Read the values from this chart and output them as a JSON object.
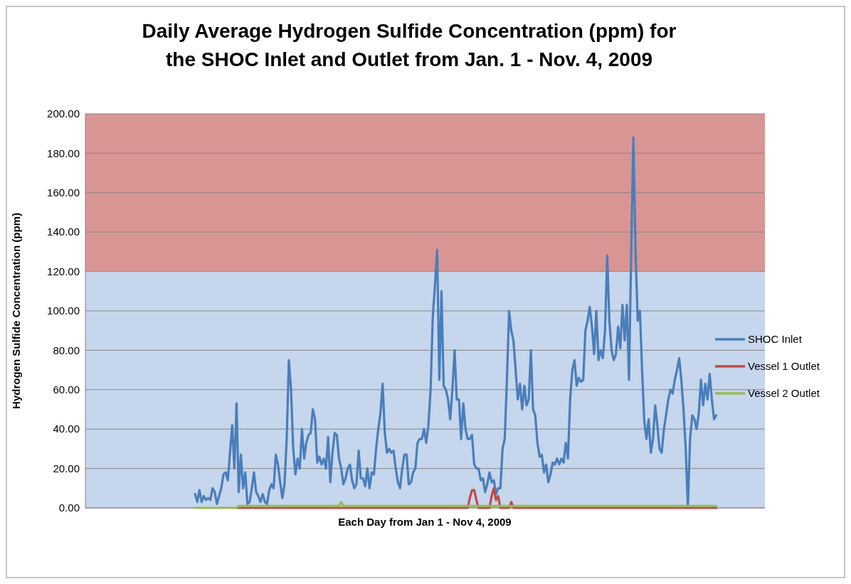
{
  "chart_data": {
    "type": "line",
    "title": "Daily Average Hydrogen Sulfide Concentration (ppm) for\nthe SHOC Inlet and Outlet from Jan. 1 - Nov. 4, 2009",
    "xlabel": "Each Day from Jan 1 - Nov 4, 2009",
    "ylabel": "Hydrogen Sulfide Concentration (ppm)",
    "categories": [
      null,
      null,
      null,
      null,
      null,
      null,
      null,
      null,
      null,
      null,
      null,
      null,
      null,
      null,
      null,
      null,
      null,
      null,
      null,
      null,
      null,
      null,
      null,
      null,
      null,
      null,
      null,
      null,
      null,
      null,
      null,
      null,
      null,
      null,
      null,
      null,
      null,
      null,
      null,
      null,
      null,
      null,
      null,
      null,
      null,
      null,
      null,
      null,
      null,
      null,
      null,
      null,
      null,
      null,
      null,
      null,
      null,
      null,
      null,
      null,
      null,
      null,
      null,
      null,
      null,
      null,
      null,
      null,
      null,
      null,
      null,
      null,
      null,
      null,
      null,
      null,
      null,
      null,
      null,
      null,
      null,
      null,
      null,
      null,
      null,
      null,
      null,
      null,
      null,
      null,
      null,
      null,
      null,
      null,
      null,
      null,
      null,
      null,
      null,
      null,
      null,
      null,
      null,
      null,
      null,
      null,
      null,
      null,
      null,
      null,
      null,
      null,
      null,
      null,
      null,
      null,
      null,
      null,
      null,
      null,
      null,
      null,
      null,
      null,
      null,
      null,
      null,
      null,
      null,
      null,
      null,
      null,
      null,
      null,
      null,
      null,
      null,
      null,
      null,
      null,
      null,
      null,
      null,
      null,
      null,
      null,
      null,
      null,
      null,
      null,
      null,
      null,
      null,
      null,
      null,
      null,
      null,
      null,
      null,
      null,
      null,
      null,
      null,
      null,
      null,
      null,
      null,
      null,
      null,
      null,
      null,
      null,
      null,
      null,
      null,
      null,
      null,
      null,
      null,
      null,
      null,
      null,
      null,
      null,
      null,
      null,
      null,
      null,
      null,
      null,
      null,
      null,
      null,
      null,
      null,
      null,
      null,
      null,
      null,
      null,
      null,
      null,
      null,
      null,
      null,
      null,
      null,
      null,
      null,
      null,
      null,
      null,
      null,
      null,
      null,
      null,
      null,
      null,
      null,
      null,
      null,
      null,
      null,
      null,
      null,
      null,
      null,
      null,
      null,
      null,
      null,
      null,
      null,
      null,
      null,
      null,
      null,
      null,
      null,
      null,
      null,
      null,
      null,
      null,
      null,
      null,
      null,
      null,
      null,
      null,
      null,
      null,
      null,
      null,
      null,
      null,
      null,
      null,
      null,
      null,
      null,
      null,
      null,
      null,
      null,
      null,
      null,
      null,
      null,
      null,
      null,
      null,
      null,
      null,
      null,
      null,
      null,
      null,
      null,
      null,
      null,
      null,
      null,
      null,
      null,
      null,
      null,
      null,
      null,
      null,
      null,
      null,
      null,
      null,
      null,
      null,
      null,
      null,
      null,
      null,
      null,
      null,
      null,
      null,
      null,
      null,
      null,
      null,
      null,
      null,
      null,
      null
    ],
    "series": [
      {
        "name": "SHOC Inlet",
        "color": "#4a7ebb",
        "values": [
          null,
          null,
          null,
          null,
          null,
          null,
          null,
          null,
          null,
          null,
          null,
          null,
          null,
          null,
          null,
          null,
          null,
          null,
          null,
          null,
          null,
          null,
          null,
          null,
          null,
          null,
          null,
          null,
          null,
          null,
          null,
          null,
          null,
          null,
          null,
          null,
          null,
          null,
          null,
          null,
          null,
          null,
          null,
          null,
          null,
          null,
          null,
          null,
          null,
          null,
          7,
          3,
          9,
          3,
          6,
          4,
          5,
          4,
          10,
          8,
          2,
          6,
          10,
          17,
          18,
          14,
          28,
          42,
          20,
          53,
          8,
          27,
          10,
          18,
          2,
          3,
          10,
          18,
          8,
          6,
          3,
          7,
          3,
          2,
          9,
          12,
          10,
          27,
          22,
          13,
          5,
          12,
          35,
          75,
          60,
          30,
          17,
          25,
          20,
          40,
          25,
          33,
          37,
          38,
          50,
          45,
          23,
          26,
          22,
          25,
          20,
          36,
          13,
          28,
          38,
          37,
          25,
          20,
          12,
          15,
          20,
          22,
          14,
          10,
          12,
          29,
          15,
          15,
          11,
          20,
          10,
          18,
          17,
          30,
          40,
          48,
          63,
          38,
          28,
          30,
          28,
          29,
          20,
          13,
          10,
          20,
          27,
          27,
          12,
          13,
          18,
          20,
          33,
          35,
          35,
          40,
          33,
          42,
          60,
          97,
          113,
          131,
          65,
          110,
          62,
          60,
          55,
          45,
          60,
          80,
          55,
          55,
          35,
          53,
          40,
          35,
          35,
          37,
          22,
          20,
          20,
          14,
          15,
          8,
          12,
          18,
          13,
          14,
          7,
          10,
          10,
          30,
          35,
          65,
          100,
          90,
          85,
          70,
          55,
          63,
          50,
          62,
          52,
          55,
          80,
          50,
          47,
          33,
          26,
          27,
          18,
          22,
          13,
          17,
          23,
          22,
          25,
          22,
          25,
          23,
          33,
          25,
          55,
          70,
          75,
          62,
          66,
          64,
          65,
          90,
          95,
          102,
          92,
          78,
          100,
          75,
          80,
          76,
          90,
          128,
          95,
          80,
          75,
          78,
          92,
          81,
          103,
          85,
          103,
          65,
          130,
          188,
          130,
          95,
          100,
          70,
          44,
          35,
          45,
          28,
          35,
          52,
          42,
          30,
          28,
          40,
          47,
          55,
          60,
          58,
          65,
          70,
          76,
          65,
          50,
          30,
          0,
          35,
          47,
          45,
          40,
          48,
          65,
          52,
          63,
          55,
          68,
          55,
          45,
          47,
          null,
          null,
          null,
          null,
          null,
          null,
          null,
          null,
          null,
          null,
          null,
          null,
          null,
          null,
          null,
          null,
          null,
          null,
          null,
          null,
          null,
          null
        ]
      },
      {
        "name": "Vessel 1 Outlet",
        "color": "#be4b48",
        "values": [
          null,
          null,
          null,
          null,
          null,
          null,
          null,
          null,
          null,
          null,
          null,
          null,
          null,
          null,
          null,
          null,
          null,
          null,
          null,
          null,
          null,
          null,
          null,
          null,
          null,
          null,
          null,
          null,
          null,
          null,
          null,
          null,
          null,
          null,
          null,
          null,
          null,
          null,
          null,
          null,
          null,
          null,
          null,
          null,
          null,
          null,
          null,
          null,
          null,
          null,
          null,
          null,
          null,
          null,
          null,
          null,
          null,
          null,
          null,
          null,
          null,
          null,
          null,
          null,
          null,
          null,
          null,
          null,
          null,
          0,
          0,
          0,
          0,
          0,
          0,
          0,
          0,
          0,
          0,
          0,
          0,
          0,
          0,
          0,
          0,
          0,
          0,
          0,
          0,
          0,
          0,
          0,
          0,
          0,
          0,
          0,
          0,
          0,
          0,
          0,
          0,
          0,
          0,
          0,
          0,
          0,
          0,
          0,
          0,
          0,
          0,
          0,
          0,
          0,
          0,
          0,
          0,
          0,
          0,
          0,
          0,
          0,
          0,
          0,
          0,
          0,
          0,
          0,
          0,
          0,
          0,
          0,
          0,
          0,
          0,
          0,
          0,
          0,
          0,
          0,
          0,
          0,
          0,
          0,
          0,
          0,
          0,
          0,
          0,
          0,
          0,
          0,
          0,
          0,
          0,
          0,
          0,
          0,
          0,
          0,
          0,
          0,
          0,
          0,
          0,
          0,
          0,
          0,
          0,
          0,
          0,
          0,
          0,
          0,
          0,
          0,
          5,
          9,
          9,
          4,
          0,
          0,
          0,
          0,
          0,
          0,
          6,
          10,
          4,
          6,
          0,
          0,
          0,
          0,
          0,
          3,
          0,
          0,
          0,
          0,
          0,
          0,
          0,
          0,
          0,
          0,
          0,
          0,
          0,
          0,
          0,
          0,
          0,
          0,
          0,
          0,
          0,
          0,
          0,
          0,
          0,
          0,
          0,
          0,
          0,
          0,
          0,
          0,
          0,
          0,
          0,
          0,
          0,
          0,
          0,
          0,
          0,
          0,
          0,
          0,
          0,
          0,
          0,
          0,
          0,
          0,
          0,
          0,
          0,
          0,
          0,
          0,
          0,
          0,
          0,
          0,
          0,
          0,
          0,
          0,
          0,
          0,
          0,
          0,
          0,
          0,
          0,
          0,
          0,
          0,
          0,
          0,
          0,
          0,
          0,
          0,
          0,
          0,
          0,
          0,
          0,
          0,
          0,
          0,
          0,
          0,
          0,
          0,
          0,
          0,
          null,
          null,
          null,
          null,
          null,
          null,
          null,
          null,
          null,
          null,
          null,
          null,
          null,
          null,
          null,
          null,
          null,
          null,
          null,
          null,
          null,
          null
        ]
      },
      {
        "name": "Vessel 2 Outlet",
        "color": "#98b954",
        "values": [
          null,
          null,
          null,
          null,
          null,
          null,
          null,
          null,
          null,
          null,
          null,
          null,
          null,
          null,
          null,
          null,
          null,
          null,
          null,
          null,
          null,
          null,
          null,
          null,
          null,
          null,
          null,
          null,
          null,
          null,
          null,
          null,
          null,
          null,
          null,
          null,
          null,
          null,
          null,
          null,
          null,
          null,
          null,
          null,
          null,
          null,
          null,
          null,
          null,
          null,
          0,
          0,
          0,
          0,
          0,
          0,
          0,
          0,
          0,
          0,
          0,
          0,
          0,
          0,
          0,
          0,
          0,
          0,
          0,
          0,
          1,
          1,
          1,
          1,
          1,
          1,
          1,
          1,
          1,
          1,
          1,
          1,
          1,
          1,
          1,
          1,
          1,
          1,
          1,
          1,
          1,
          1,
          1,
          1,
          1,
          1,
          1,
          1,
          1,
          1,
          1,
          1,
          1,
          1,
          1,
          1,
          1,
          1,
          1,
          1,
          1,
          1,
          1,
          1,
          1,
          1,
          1,
          3,
          1,
          1,
          1,
          1,
          1,
          1,
          1,
          1,
          1,
          1,
          1,
          1,
          1,
          1,
          1,
          1,
          1,
          1,
          1,
          1,
          1,
          1,
          1,
          1,
          1,
          1,
          1,
          1,
          1,
          1,
          1,
          1,
          1,
          1,
          1,
          1,
          1,
          1,
          1,
          1,
          1,
          1,
          1,
          1,
          1,
          1,
          1,
          1,
          1,
          1,
          1,
          1,
          1,
          1,
          1,
          1,
          1,
          1,
          1,
          1,
          1,
          1,
          1,
          1,
          1,
          1,
          1,
          1,
          1,
          1,
          1,
          1,
          1,
          1,
          1,
          1,
          1,
          1,
          1,
          1,
          1,
          1,
          1,
          1,
          1,
          1,
          1,
          1,
          1,
          1,
          1,
          1,
          1,
          1,
          1,
          1,
          1,
          1,
          1,
          1,
          1,
          1,
          1,
          1,
          1,
          1,
          1,
          1,
          1,
          1,
          1,
          1,
          1,
          1,
          1,
          1,
          1,
          1,
          1,
          1,
          1,
          1,
          1,
          1,
          1,
          1,
          1,
          1,
          1,
          1,
          1,
          1,
          1,
          1,
          1,
          1,
          1,
          1,
          1,
          1,
          1,
          1,
          1,
          1,
          1,
          1,
          1,
          1,
          1,
          1,
          1,
          1,
          1,
          1,
          1,
          1,
          1,
          1,
          1,
          1,
          1,
          1,
          1,
          1,
          1,
          1,
          1,
          1,
          1,
          1,
          1,
          1,
          null,
          null,
          null,
          null,
          null,
          null,
          null,
          null,
          null,
          null,
          null,
          null,
          null,
          null,
          null,
          null,
          null,
          null,
          null,
          null,
          null,
          null
        ]
      }
    ],
    "ylim": [
      0,
      200
    ],
    "yticks": [
      {
        "value": 0,
        "label": "0.00"
      },
      {
        "value": 20,
        "label": "20.00"
      },
      {
        "value": 40,
        "label": "40.00"
      },
      {
        "value": 60,
        "label": "60.00"
      },
      {
        "value": 80,
        "label": "80.00"
      },
      {
        "value": 100,
        "label": "100.00"
      },
      {
        "value": 120,
        "label": "120.00"
      },
      {
        "value": 140,
        "label": "140.00"
      },
      {
        "value": 160,
        "label": "160.00"
      },
      {
        "value": 180,
        "label": "180.00"
      },
      {
        "value": 200,
        "label": "200.00"
      }
    ],
    "bands": [
      {
        "axis": "y",
        "from": 0,
        "to": 120,
        "color": "#c6d6ec"
      },
      {
        "axis": "y",
        "from": 120,
        "to": 200,
        "color": "#d99594"
      }
    ],
    "grid": "y",
    "legend": "right",
    "marker": "none",
    "line_style": "solid"
  }
}
